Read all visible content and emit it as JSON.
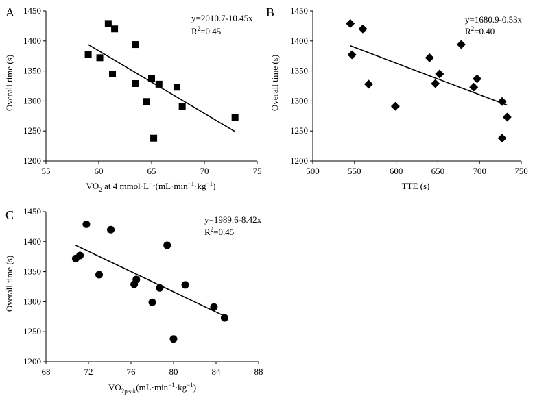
{
  "chart_data": [
    {
      "panel": "A",
      "type": "scatter",
      "marker": "square",
      "xlabel_parts": [
        {
          "t": "VO",
          "s": ""
        },
        {
          "t": "2",
          "s": "sub"
        },
        {
          "t": " at 4 mmol·L",
          "s": ""
        },
        {
          "t": "−1",
          "s": "sup"
        },
        {
          "t": "(mL·min",
          "s": ""
        },
        {
          "t": "−1",
          "s": "sup"
        },
        {
          "t": "·kg",
          "s": ""
        },
        {
          "t": "−1",
          "s": "sup"
        },
        {
          "t": ")",
          "s": ""
        }
      ],
      "ylabel": "Overall time (s)",
      "xlim": [
        55,
        75
      ],
      "ylim": [
        1200,
        1450
      ],
      "xticks": [
        55,
        60,
        65,
        70,
        75
      ],
      "yticks": [
        1200,
        1250,
        1300,
        1350,
        1400,
        1450
      ],
      "x": [
        59.0,
        60.1,
        60.9,
        61.3,
        61.5,
        63.5,
        63.5,
        64.5,
        65.0,
        65.2,
        65.7,
        67.4,
        67.9,
        72.9
      ],
      "y": [
        1377,
        1372,
        1429,
        1345,
        1420,
        1329,
        1394,
        1299,
        1337,
        1238,
        1328,
        1323,
        1291,
        1273
      ],
      "fit": {
        "x": [
          59.0,
          72.9
        ],
        "y": [
          1394,
          1249
        ]
      },
      "equation": "y=2010.7-10.45x",
      "r2_prefix": "R",
      "r2_exp": "2",
      "r2_value": "=0.45"
    },
    {
      "panel": "B",
      "type": "scatter",
      "marker": "diamond",
      "xlabel_parts": [
        {
          "t": "TTE (s)",
          "s": ""
        }
      ],
      "ylabel": "Overall time (s)",
      "xlim": [
        500,
        750
      ],
      "ylim": [
        1200,
        1450
      ],
      "xticks": [
        500,
        550,
        600,
        650,
        700,
        750
      ],
      "yticks": [
        1200,
        1250,
        1300,
        1350,
        1400,
        1450
      ],
      "x": [
        545,
        547,
        560,
        567,
        599,
        640,
        647,
        652,
        678,
        693,
        697,
        727,
        727,
        733
      ],
      "y": [
        1429,
        1377,
        1420,
        1328,
        1291,
        1372,
        1329,
        1345,
        1394,
        1323,
        1337,
        1299,
        1238,
        1273
      ],
      "fit": {
        "x": [
          545,
          733
        ],
        "y": [
          1392,
          1293
        ]
      },
      "equation": "y=1680.9-0.53x",
      "r2_prefix": "R",
      "r2_exp": "2",
      "r2_value": "=0.40"
    },
    {
      "panel": "C",
      "type": "scatter",
      "marker": "circle",
      "xlabel_parts": [
        {
          "t": "VO",
          "s": ""
        },
        {
          "t": "2peak",
          "s": "sub"
        },
        {
          "t": "(mL·min",
          "s": ""
        },
        {
          "t": "−1",
          "s": "sup"
        },
        {
          "t": "·kg",
          "s": ""
        },
        {
          "t": "−1",
          "s": "sup"
        },
        {
          "t": ")",
          "s": ""
        }
      ],
      "ylabel": "Overall time (s)",
      "xlim": [
        68,
        88
      ],
      "ylim": [
        1200,
        1450
      ],
      "xticks": [
        68,
        72,
        76,
        80,
        84,
        88
      ],
      "yticks": [
        1200,
        1250,
        1300,
        1350,
        1400,
        1450
      ],
      "x": [
        70.8,
        71.2,
        71.8,
        73.0,
        74.1,
        76.3,
        76.5,
        78.0,
        78.7,
        79.4,
        80.0,
        81.1,
        83.8,
        84.8
      ],
      "y": [
        1372,
        1377,
        1429,
        1345,
        1420,
        1329,
        1337,
        1299,
        1323,
        1394,
        1238,
        1328,
        1291,
        1273
      ],
      "fit": {
        "x": [
          70.8,
          84.8
        ],
        "y": [
          1394,
          1276
        ]
      },
      "equation": "y=1989.6-8.42x",
      "r2_prefix": "R",
      "r2_exp": "2",
      "r2_value": "=0.45"
    }
  ]
}
